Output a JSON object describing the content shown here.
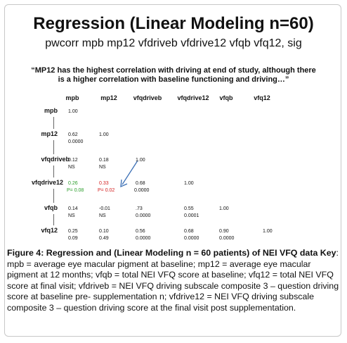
{
  "title": "Regression (Linear Modeling n=60)",
  "subtitle": "pwcorr  mpb  mp12  vfdriveb  vfdrive12  vfqb  vfq12, sig",
  "quote": "“MP12 has the highest correlation with driving at end of study, although there is a higher correlation with baseline functioning and driving…”",
  "matrix": {
    "columns": [
      "mpb",
      "mp12",
      "vfqdriveb",
      "vfqdrive12",
      "vfqb",
      "vfq12"
    ],
    "rows": [
      {
        "label": "mpb",
        "cells": [
          [
            "1.00"
          ]
        ]
      },
      {
        "label": "mp12",
        "cells": [
          [
            "0.62",
            "0.0000"
          ],
          [
            "1.00"
          ]
        ]
      },
      {
        "label": "vfqdriveb",
        "cells": [
          [
            "0.12",
            "NS"
          ],
          [
            "0.18",
            "NS"
          ],
          [
            "1.00"
          ]
        ]
      },
      {
        "label": "vfqdrive12",
        "cells": [
          [
            "0.26",
            "P= 0.08"
          ],
          [
            "0.33",
            "P= 0.02"
          ],
          [
            "0.68",
            "0.0000"
          ],
          [
            "1.00"
          ]
        ]
      },
      {
        "label": "vfqb",
        "cells": [
          [
            "0.14",
            "NS"
          ],
          [
            "-0.01",
            "NS"
          ],
          [
            ".73",
            "0.0000"
          ],
          [
            "0.55",
            "0.0001"
          ],
          [
            "1.00"
          ]
        ]
      },
      {
        "label": "vfq12",
        "cells": [
          [
            "0.25",
            "0.09"
          ],
          [
            "0.10",
            "0.49"
          ],
          [
            "0.56",
            "0.0000"
          ],
          [
            "0.68",
            "0.0000"
          ],
          [
            "0.90",
            "0.0000"
          ],
          [
            "1.00"
          ]
        ]
      }
    ]
  },
  "caption": {
    "title": "Figure 4: Regression and (Linear Modeling n = 60 patients) of NEI VFQ data Key",
    "text": ": mpb = average eye macular pigment at baseline; mp12 = average eye macular pigment at 12 months; vfqb = total NEI VFQ score at baseline; vfq12 = total NEI VFQ score at final visit; vfdriveb = NEI VFQ driving subscale composite 3 – question driving score at baseline pre- supplementation n; vfdrive12 = NEI VFQ driving subscale composite 3 – question driving score at the final visit post supplementation."
  }
}
